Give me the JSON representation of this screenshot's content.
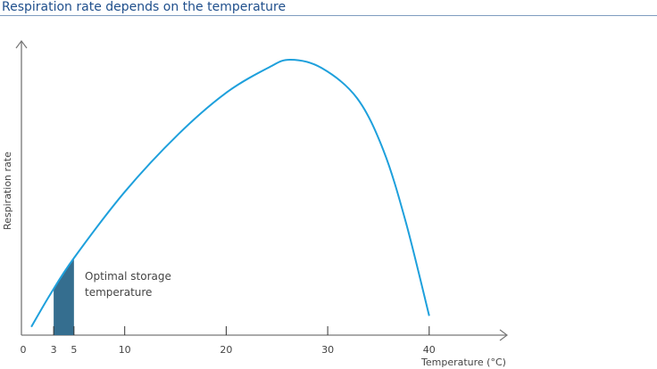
{
  "header": {
    "title": "Respiration rate depends on the temperature"
  },
  "chart_data": {
    "type": "line",
    "title": "Respiration rate depends on the temperature",
    "xlabel": "Temperature (°C)",
    "ylabel": "Respiration rate",
    "xlim": [
      0,
      48
    ],
    "ylim": [
      0,
      100
    ],
    "x_ticks": [
      0,
      3,
      5,
      10,
      20,
      30,
      40
    ],
    "x_tick_labels": [
      "0",
      "3",
      "5",
      "10",
      "20",
      "30",
      "40"
    ],
    "grid": false,
    "series": [
      {
        "x": [
          0.8,
          2.7,
          5,
          10,
          15.3,
          20,
          24.1,
          26.3,
          29.4,
          32.9,
          35.5,
          37.7,
          40
        ],
        "y": [
          3,
          15,
          28,
          52,
          73,
          88,
          97,
          100,
          97,
          86,
          67,
          41,
          7
        ]
      }
    ],
    "shaded_region": {
      "x_range": [
        3,
        5
      ],
      "label": [
        "Optimal storage",
        "temperature"
      ]
    },
    "colors": {
      "line": "#1ea0dc",
      "shade": "#356e8f",
      "axis": "#777777",
      "title": "#1f4f8c"
    }
  }
}
